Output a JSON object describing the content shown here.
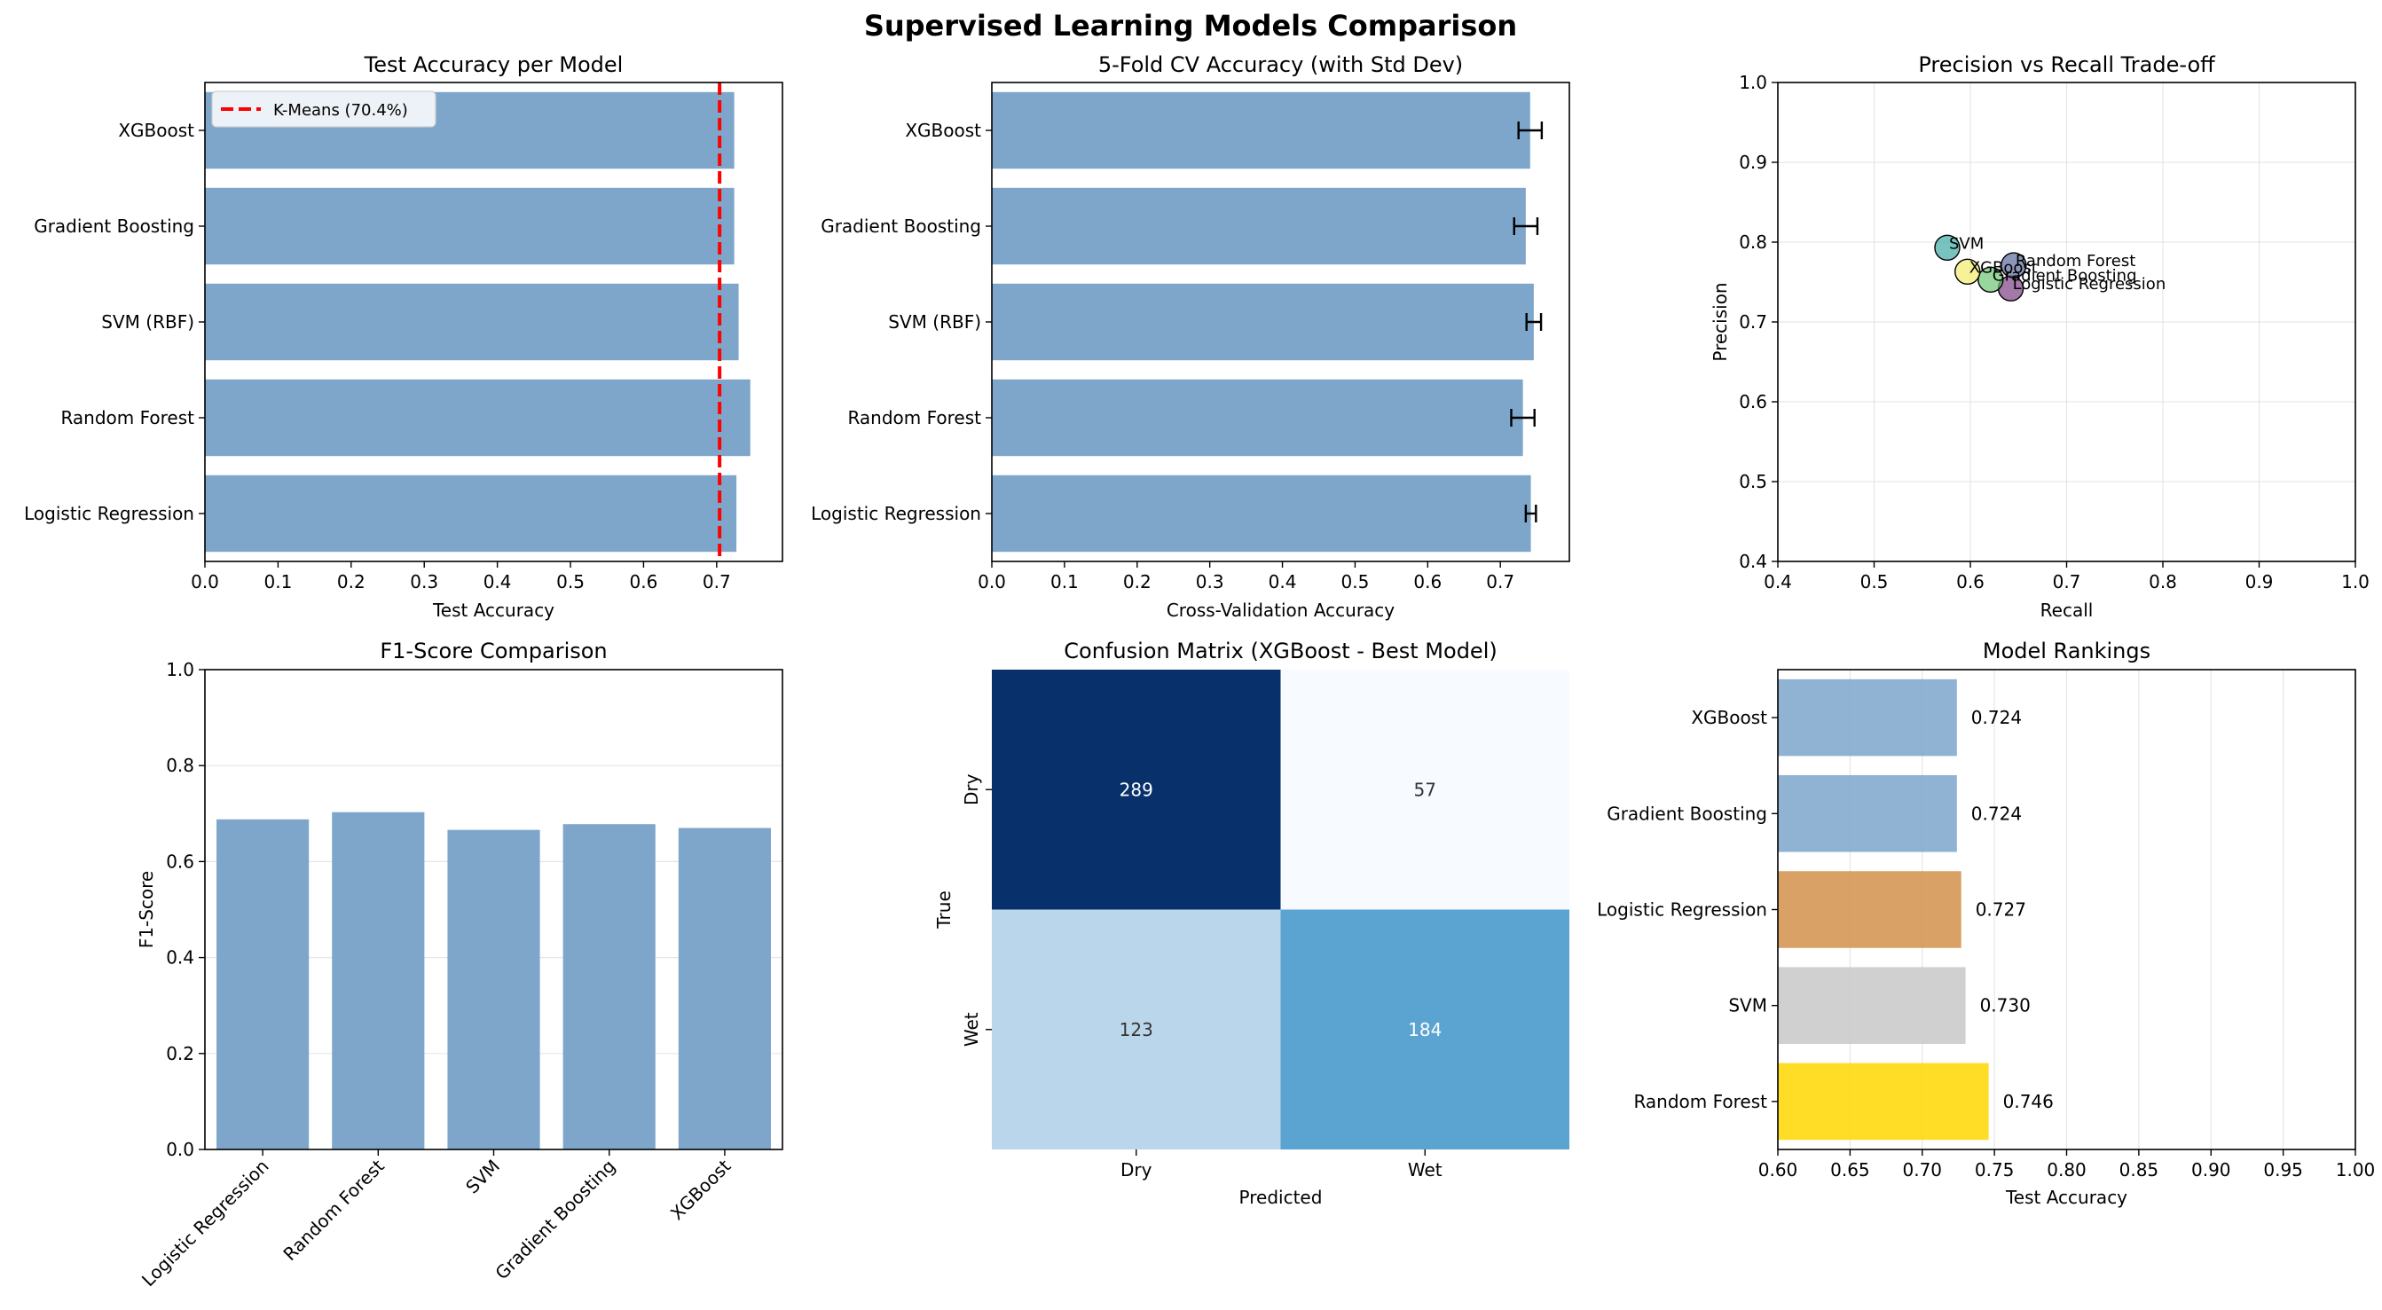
{
  "figure": {
    "title": "Supervised Learning Models Comparison"
  },
  "colors": {
    "bar": "#7ea6cb",
    "kmeans_line": "#ff0000",
    "axis": "#000000",
    "grid": "#e6e6e6"
  },
  "chart_data": [
    {
      "id": "test_accuracy",
      "type": "bar",
      "orientation": "horizontal",
      "title": "Test Accuracy per Model",
      "xlabel": "Test Accuracy",
      "ylabel": "",
      "categories": [
        "Logistic Regression",
        "Random Forest",
        "SVM (RBF)",
        "Gradient Boosting",
        "XGBoost"
      ],
      "values": [
        0.727,
        0.746,
        0.73,
        0.724,
        0.724
      ],
      "xlim": [
        0,
        0.79
      ],
      "xticks": [
        "0.0",
        "0.1",
        "0.2",
        "0.3",
        "0.4",
        "0.5",
        "0.6",
        "0.7"
      ],
      "reference_line": {
        "label": "K-Means (70.4%)",
        "value": 0.704,
        "style": "dashed",
        "color": "#ff0000"
      },
      "legend_position": "upper left",
      "grid": false
    },
    {
      "id": "cv_accuracy",
      "type": "bar",
      "orientation": "horizontal",
      "title": "5-Fold CV Accuracy (with Std Dev)",
      "xlabel": "Cross-Validation Accuracy",
      "ylabel": "",
      "categories": [
        "Logistic Regression",
        "Random Forest",
        "SVM (RBF)",
        "Gradient Boosting",
        "XGBoost"
      ],
      "values": [
        0.742,
        0.731,
        0.746,
        0.735,
        0.741
      ],
      "errors": [
        0.007,
        0.016,
        0.01,
        0.016,
        0.016
      ],
      "xlim": [
        0,
        0.795
      ],
      "xticks": [
        "0.0",
        "0.1",
        "0.2",
        "0.3",
        "0.4",
        "0.5",
        "0.6",
        "0.7"
      ],
      "grid": false
    },
    {
      "id": "precision_recall",
      "type": "scatter",
      "title": "Precision vs Recall Trade-off",
      "xlabel": "Recall",
      "ylabel": "Precision",
      "xlim": [
        0.4,
        1.0
      ],
      "ylim": [
        0.4,
        1.0
      ],
      "xticks": [
        "0.4",
        "0.5",
        "0.6",
        "0.7",
        "0.8",
        "0.9",
        "1.0"
      ],
      "yticks": [
        "0.4",
        "0.5",
        "0.6",
        "0.7",
        "0.8",
        "0.9",
        "1.0"
      ],
      "points": [
        {
          "label": "Logistic Regression",
          "x": 0.642,
          "y": 0.742,
          "color": "#7d3f85"
        },
        {
          "label": "Random Forest",
          "x": 0.645,
          "y": 0.771,
          "color": "#5b6a9a"
        },
        {
          "label": "SVM",
          "x": 0.576,
          "y": 0.793,
          "color": "#3fa8a5"
        },
        {
          "label": "Gradient Boosting",
          "x": 0.621,
          "y": 0.753,
          "color": "#6cc474"
        },
        {
          "label": "XGBoost",
          "x": 0.597,
          "y": 0.763,
          "color": "#f4ec6c"
        }
      ],
      "grid": true
    },
    {
      "id": "f1_scores",
      "type": "bar",
      "orientation": "vertical",
      "title": "F1-Score Comparison",
      "xlabel": "",
      "ylabel": "F1-Score",
      "categories": [
        "Logistic Regression",
        "Random Forest",
        "SVM",
        "Gradient Boosting",
        "XGBoost"
      ],
      "values": [
        0.688,
        0.703,
        0.666,
        0.678,
        0.67
      ],
      "ylim": [
        0,
        1.0
      ],
      "yticks": [
        "0.0",
        "0.2",
        "0.4",
        "0.6",
        "0.8",
        "1.0"
      ],
      "grid": true
    },
    {
      "id": "confusion_matrix",
      "type": "heatmap",
      "title": "Confusion Matrix (XGBoost - Best Model)",
      "xlabel": "Predicted",
      "ylabel": "True",
      "x_categories": [
        "Dry",
        "Wet"
      ],
      "y_categories": [
        "Dry",
        "Wet"
      ],
      "values": [
        [
          289,
          57
        ],
        [
          123,
          184
        ]
      ],
      "colors": [
        [
          "#08306b",
          "#f7fbff"
        ],
        [
          "#bad6eb",
          "#5ba3d0"
        ]
      ],
      "text_colors": [
        [
          "#ffffff",
          "#333333"
        ],
        [
          "#333333",
          "#ffffff"
        ]
      ]
    },
    {
      "id": "model_rankings",
      "type": "bar",
      "orientation": "horizontal",
      "title": "Model Rankings",
      "xlabel": "Test Accuracy",
      "ylabel": "",
      "categories": [
        "Random Forest",
        "SVM",
        "Logistic Regression",
        "Gradient Boosting",
        "XGBoost"
      ],
      "values": [
        0.746,
        0.73,
        0.727,
        0.724,
        0.724
      ],
      "value_labels": [
        "0.746",
        "0.730",
        "0.727",
        "0.724",
        "0.724"
      ],
      "bar_colors": [
        "#ffd700",
        "#c8c8c8",
        "#d2914a",
        "#7ea6cb",
        "#7ea6cb"
      ],
      "xlim": [
        0.6,
        1.0
      ],
      "xticks": [
        "0.60",
        "0.65",
        "0.70",
        "0.75",
        "0.80",
        "0.85",
        "0.90",
        "0.95",
        "1.00"
      ],
      "grid": true
    }
  ]
}
